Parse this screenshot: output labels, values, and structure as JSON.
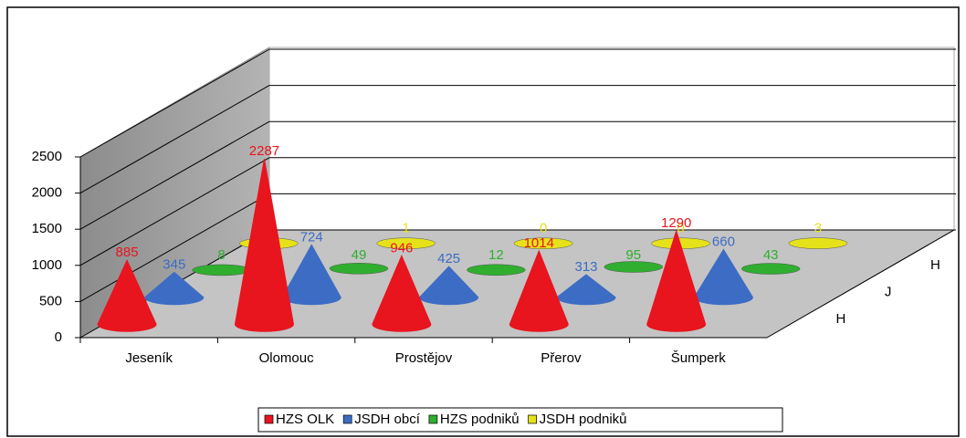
{
  "chart_data": {
    "type": "cone3d",
    "categories": [
      "Jeseník",
      "Olomouc",
      "Prostějov",
      "Přerov",
      "Šumperk"
    ],
    "series": [
      {
        "name": "HZS OLK",
        "color": "#e8141e",
        "values": [
          885,
          2287,
          946,
          1014,
          1290
        ]
      },
      {
        "name": "JSDH obcí",
        "color": "#3c6cc4",
        "values": [
          345,
          724,
          425,
          313,
          660
        ]
      },
      {
        "name": "HZS podniků",
        "color": "#2fae2f",
        "values": [
          8,
          49,
          12,
          95,
          43
        ]
      },
      {
        "name": "JSDH podniků",
        "color": "#e6e21a",
        "values": [
          0,
          1,
          0,
          0,
          3
        ]
      }
    ],
    "depth_labels": [
      "H",
      "J",
      "H",
      "J"
    ],
    "ylim": [
      0,
      2500
    ],
    "yticks": [
      0,
      500,
      1000,
      1500,
      2000,
      2500
    ],
    "grid": true
  }
}
